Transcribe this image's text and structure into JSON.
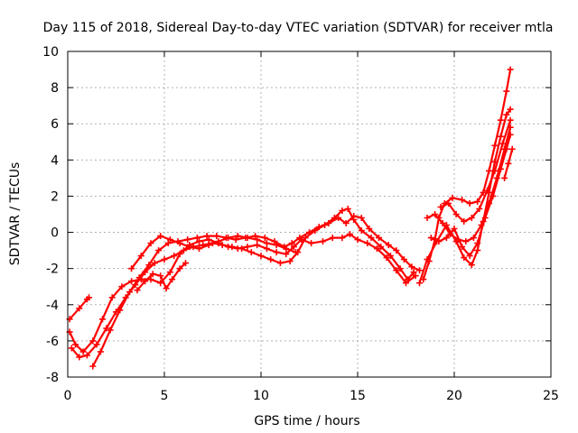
{
  "chart_data": {
    "type": "scatter",
    "title": "Day 115 of 2018, Sidereal Day-to-day VTEC variation (SDTVAR) for receiver mtla",
    "xlabel": "GPS time / hours",
    "ylabel": "SDTVAR / TECUs",
    "xlim": [
      0,
      25
    ],
    "ylim": [
      -8,
      10
    ],
    "xticks": [
      "0",
      "5",
      "10",
      "15",
      "20",
      "25"
    ],
    "yticks": [
      "-8",
      "-6",
      "-4",
      "-2",
      "0",
      "2",
      "4",
      "6",
      "8",
      "10"
    ],
    "grid": true,
    "marker": "+",
    "color": "#ff0000",
    "series": [
      {
        "name": "track-1",
        "points": [
          [
            0.1,
            -4.8
          ],
          [
            0.6,
            -4.2
          ],
          [
            1.0,
            -3.7
          ],
          [
            1.1,
            -3.6
          ]
        ]
      },
      {
        "name": "track-2",
        "points": [
          [
            0.1,
            -5.5
          ],
          [
            0.4,
            -6.2
          ],
          [
            0.8,
            -6.6
          ],
          [
            1.3,
            -6.0
          ],
          [
            1.8,
            -4.8
          ],
          [
            2.3,
            -3.6
          ],
          [
            2.8,
            -3.0
          ],
          [
            3.3,
            -2.7
          ],
          [
            3.8,
            -2.6
          ],
          [
            4.3,
            -2.6
          ],
          [
            4.8,
            -2.8
          ],
          [
            5.3,
            -2.2
          ],
          [
            5.8,
            -1.2
          ],
          [
            6.3,
            -0.7
          ],
          [
            6.8,
            -0.5
          ],
          [
            7.3,
            -0.4
          ],
          [
            7.8,
            -0.6
          ],
          [
            8.3,
            -0.8
          ],
          [
            8.8,
            -0.9
          ],
          [
            9.3,
            -0.8
          ],
          [
            9.8,
            -0.7
          ],
          [
            10.3,
            -0.9
          ],
          [
            10.8,
            -1.1
          ],
          [
            11.3,
            -1.2
          ],
          [
            11.7,
            -0.8
          ],
          [
            12.1,
            -0.4
          ],
          [
            12.6,
            -0.6
          ],
          [
            13.2,
            -0.5
          ],
          [
            13.7,
            -0.3
          ],
          [
            14.2,
            -0.3
          ],
          [
            14.6,
            -0.1
          ],
          [
            15.0,
            -0.4
          ],
          [
            15.5,
            -0.6
          ],
          [
            16.0,
            -0.9
          ],
          [
            16.5,
            -1.4
          ],
          [
            17.0,
            -2.1
          ],
          [
            17.5,
            -2.8
          ],
          [
            18.0,
            -2.4
          ]
        ]
      },
      {
        "name": "track-3",
        "points": [
          [
            0.2,
            -6.4
          ],
          [
            0.6,
            -6.9
          ],
          [
            1.0,
            -6.8
          ],
          [
            1.5,
            -6.2
          ],
          [
            2.0,
            -5.3
          ],
          [
            2.5,
            -4.4
          ],
          [
            3.0,
            -3.6
          ],
          [
            3.5,
            -2.9
          ],
          [
            4.0,
            -2.2
          ],
          [
            4.5,
            -1.7
          ],
          [
            5.0,
            -1.5
          ],
          [
            5.5,
            -1.3
          ],
          [
            6.0,
            -1.0
          ],
          [
            6.5,
            -0.8
          ],
          [
            7.0,
            -0.7
          ],
          [
            7.5,
            -0.6
          ],
          [
            8.0,
            -0.7
          ],
          [
            8.5,
            -0.8
          ],
          [
            9.0,
            -0.9
          ],
          [
            9.5,
            -1.1
          ],
          [
            10.0,
            -1.3
          ],
          [
            10.5,
            -1.5
          ],
          [
            11.0,
            -1.7
          ],
          [
            11.5,
            -1.6
          ],
          [
            11.9,
            -1.1
          ],
          [
            12.3,
            -0.3
          ],
          [
            12.8,
            0.1
          ],
          [
            13.3,
            0.4
          ],
          [
            13.8,
            0.8
          ],
          [
            14.2,
            1.2
          ],
          [
            14.5,
            1.3
          ],
          [
            14.8,
            0.7
          ],
          [
            15.2,
            0.1
          ],
          [
            15.7,
            -0.3
          ],
          [
            16.2,
            -0.8
          ],
          [
            16.7,
            -1.3
          ],
          [
            17.2,
            -2.0
          ],
          [
            17.6,
            -2.6
          ],
          [
            17.9,
            -2.2
          ]
        ]
      },
      {
        "name": "track-4",
        "points": [
          [
            1.3,
            -7.4
          ],
          [
            1.7,
            -6.6
          ],
          [
            2.2,
            -5.4
          ],
          [
            2.7,
            -4.3
          ],
          [
            3.2,
            -3.3
          ],
          [
            3.7,
            -2.5
          ],
          [
            4.2,
            -1.8
          ],
          [
            4.7,
            -1.0
          ],
          [
            5.2,
            -0.6
          ],
          [
            5.7,
            -0.5
          ],
          [
            6.2,
            -0.4
          ],
          [
            6.7,
            -0.3
          ],
          [
            7.2,
            -0.2
          ],
          [
            7.7,
            -0.2
          ],
          [
            8.2,
            -0.3
          ],
          [
            8.7,
            -0.4
          ],
          [
            9.2,
            -0.3
          ],
          [
            9.7,
            -0.2
          ],
          [
            10.2,
            -0.3
          ],
          [
            10.7,
            -0.5
          ],
          [
            11.2,
            -0.8
          ],
          [
            11.6,
            -0.6
          ],
          [
            12.0,
            -0.3
          ],
          [
            12.5,
            0.0
          ],
          [
            13.0,
            0.3
          ],
          [
            13.5,
            0.5
          ],
          [
            14.0,
            0.8
          ],
          [
            14.4,
            0.5
          ],
          [
            14.8,
            0.9
          ],
          [
            15.2,
            0.8
          ],
          [
            15.6,
            0.2
          ],
          [
            16.1,
            -0.3
          ],
          [
            16.6,
            -0.7
          ],
          [
            17.0,
            -1.0
          ],
          [
            17.4,
            -1.5
          ],
          [
            17.8,
            -1.9
          ],
          [
            18.2,
            -2.1
          ]
        ]
      },
      {
        "name": "track-5",
        "points": [
          [
            3.3,
            -2.0
          ],
          [
            3.8,
            -1.3
          ],
          [
            4.3,
            -0.6
          ],
          [
            4.8,
            -0.2
          ],
          [
            5.3,
            -0.4
          ],
          [
            5.8,
            -0.6
          ],
          [
            6.3,
            -0.8
          ],
          [
            6.8,
            -0.9
          ],
          [
            7.3,
            -0.7
          ],
          [
            7.8,
            -0.5
          ],
          [
            8.3,
            -0.3
          ],
          [
            8.8,
            -0.2
          ],
          [
            9.3,
            -0.3
          ],
          [
            9.8,
            -0.4
          ],
          [
            10.3,
            -0.6
          ],
          [
            10.8,
            -0.7
          ],
          [
            11.3,
            -0.9
          ],
          [
            11.8,
            -1.1
          ]
        ]
      },
      {
        "name": "track-6",
        "points": [
          [
            3.6,
            -3.2
          ],
          [
            4.0,
            -2.7
          ],
          [
            4.4,
            -2.3
          ],
          [
            4.8,
            -2.4
          ],
          [
            5.1,
            -3.1
          ],
          [
            5.4,
            -2.6
          ],
          [
            5.8,
            -2.0
          ],
          [
            6.1,
            -1.7
          ]
        ]
      },
      {
        "name": "track-7",
        "points": [
          [
            18.4,
            -2.6
          ],
          [
            18.7,
            -1.6
          ],
          [
            19.0,
            -0.4
          ],
          [
            19.2,
            0.8
          ],
          [
            19.5,
            1.6
          ],
          [
            19.9,
            1.9
          ],
          [
            20.4,
            1.8
          ],
          [
            20.8,
            1.6
          ],
          [
            21.2,
            1.7
          ],
          [
            21.5,
            2.2
          ],
          [
            21.8,
            3.4
          ],
          [
            22.1,
            4.8
          ],
          [
            22.4,
            6.2
          ],
          [
            22.7,
            7.8
          ],
          [
            22.9,
            9.0
          ]
        ]
      },
      {
        "name": "track-8",
        "points": [
          [
            18.2,
            -2.8
          ],
          [
            18.6,
            -1.5
          ],
          [
            19.1,
            -0.5
          ],
          [
            19.6,
            0.4
          ],
          [
            20.1,
            -0.5
          ],
          [
            20.5,
            -1.4
          ],
          [
            20.9,
            -1.8
          ],
          [
            21.2,
            -1.0
          ],
          [
            21.5,
            0.6
          ],
          [
            21.8,
            2.2
          ],
          [
            22.1,
            3.9
          ],
          [
            22.4,
            5.3
          ],
          [
            22.7,
            6.5
          ],
          [
            22.9,
            6.8
          ]
        ]
      },
      {
        "name": "track-9",
        "points": [
          [
            18.6,
            0.8
          ],
          [
            19.0,
            1.0
          ],
          [
            19.4,
            0.5
          ],
          [
            19.8,
            -0.1
          ],
          [
            20.2,
            -0.4
          ],
          [
            20.6,
            -0.5
          ],
          [
            21.0,
            -0.3
          ],
          [
            21.4,
            0.4
          ],
          [
            21.8,
            1.6
          ],
          [
            22.2,
            3.0
          ],
          [
            22.6,
            4.6
          ],
          [
            22.9,
            5.8
          ]
        ]
      },
      {
        "name": "track-10",
        "points": [
          [
            19.3,
            1.4
          ],
          [
            19.7,
            1.6
          ],
          [
            20.1,
            1.0
          ],
          [
            20.5,
            0.6
          ],
          [
            20.9,
            0.8
          ],
          [
            21.3,
            1.3
          ],
          [
            21.7,
            2.3
          ],
          [
            22.1,
            3.4
          ],
          [
            22.5,
            4.9
          ],
          [
            22.9,
            6.2
          ]
        ]
      },
      {
        "name": "track-11",
        "points": [
          [
            18.8,
            -0.3
          ],
          [
            19.2,
            -0.5
          ],
          [
            19.6,
            -0.3
          ],
          [
            20.0,
            0.2
          ],
          [
            20.4,
            -0.8
          ],
          [
            20.8,
            -1.3
          ],
          [
            21.2,
            -0.6
          ],
          [
            21.6,
            0.8
          ],
          [
            22.0,
            2.0
          ],
          [
            22.4,
            3.5
          ],
          [
            22.7,
            4.6
          ],
          [
            22.9,
            5.4
          ]
        ]
      },
      {
        "name": "track-12",
        "points": [
          [
            22.6,
            3.0
          ],
          [
            22.8,
            3.8
          ],
          [
            23.0,
            4.6
          ]
        ]
      }
    ]
  }
}
